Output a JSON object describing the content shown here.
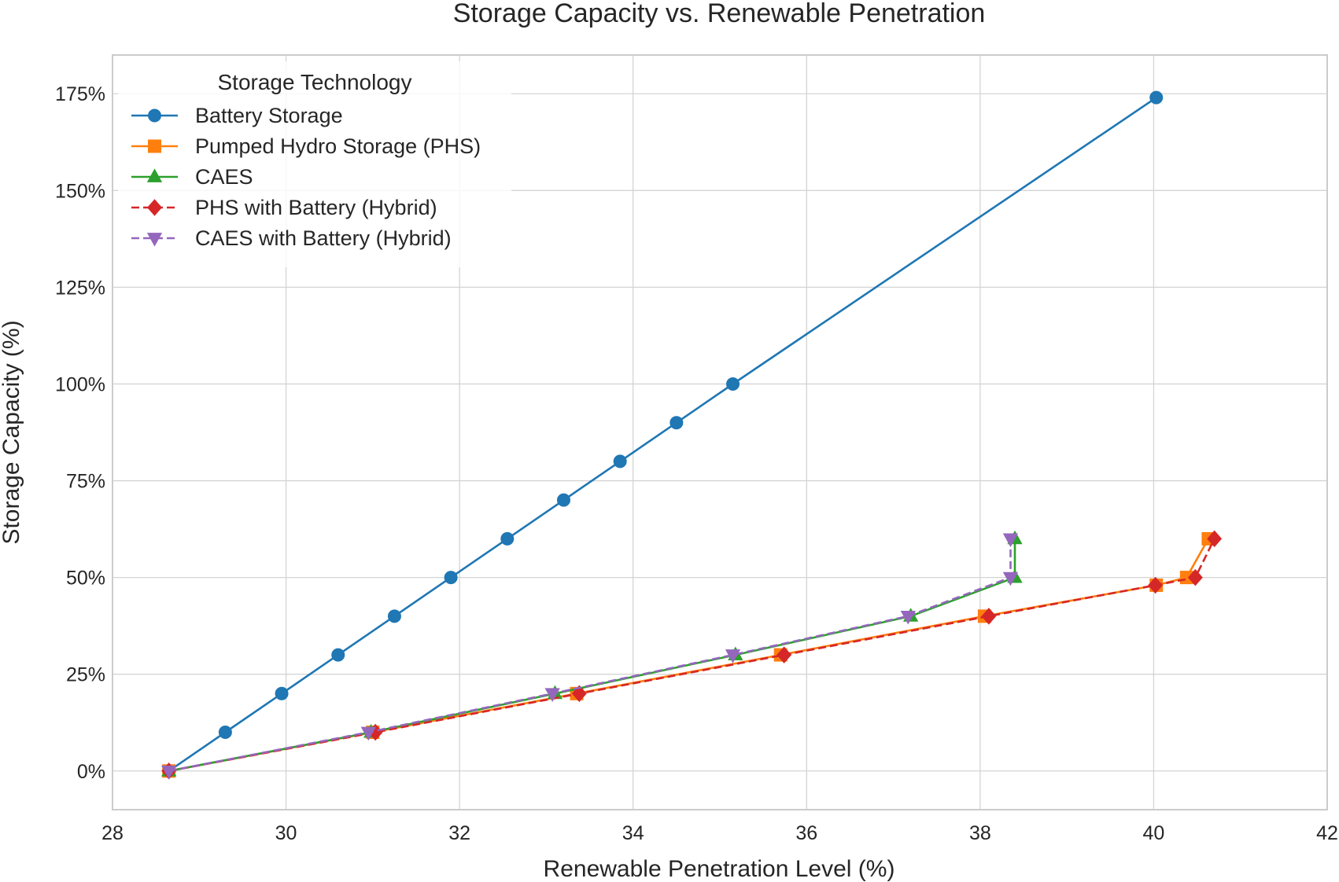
{
  "chart_data": {
    "type": "line",
    "title": "Storage Capacity vs. Renewable Penetration",
    "xlabel": "Renewable Penetration Level (%)",
    "ylabel": "Storage Capacity (%)",
    "xlim": [
      28,
      42
    ],
    "ylim": [
      -10,
      185
    ],
    "xticks": [
      28,
      30,
      32,
      34,
      36,
      38,
      40,
      42
    ],
    "yticks": [
      0,
      25,
      50,
      75,
      100,
      125,
      150,
      175
    ],
    "ytick_suffix": "%",
    "grid": true,
    "legend": {
      "title": "Storage Technology",
      "position": "top-left"
    },
    "series": [
      {
        "name": "Battery Storage",
        "color": "#1f77b4",
        "marker": "circle",
        "linestyle": "solid",
        "x": [
          28.65,
          29.3,
          29.95,
          30.6,
          31.25,
          31.9,
          32.55,
          33.2,
          33.85,
          34.5,
          35.15,
          40.03
        ],
        "y": [
          0,
          10,
          20,
          30,
          40,
          50,
          60,
          70,
          80,
          90,
          100,
          174
        ]
      },
      {
        "name": "Pumped Hydro Storage (PHS)",
        "color": "#ff7f0e",
        "marker": "square",
        "linestyle": "solid",
        "x": [
          28.65,
          31.0,
          33.35,
          35.7,
          38.05,
          40.03,
          40.38,
          40.63
        ],
        "y": [
          0,
          10,
          20,
          30,
          40,
          48,
          50,
          60
        ]
      },
      {
        "name": "CAES",
        "color": "#2ca02c",
        "marker": "triangle-up",
        "linestyle": "solid",
        "x": [
          28.65,
          30.98,
          33.1,
          35.18,
          37.2,
          38.4,
          38.4
        ],
        "y": [
          0,
          10,
          20,
          30,
          40,
          50,
          60
        ]
      },
      {
        "name": "PHS with Battery (Hybrid)",
        "color": "#d62728",
        "marker": "diamond",
        "linestyle": "dashed",
        "x": [
          28.65,
          31.03,
          33.38,
          35.74,
          38.1,
          40.02,
          40.48,
          40.7
        ],
        "y": [
          0,
          10,
          20,
          30,
          40,
          48,
          50,
          60
        ]
      },
      {
        "name": "CAES with Battery (Hybrid)",
        "color": "#9467bd",
        "marker": "triangle-down",
        "linestyle": "dashed",
        "x": [
          28.65,
          30.95,
          33.07,
          35.15,
          37.17,
          38.35,
          38.35
        ],
        "y": [
          0,
          10,
          20,
          30,
          40,
          50,
          60
        ]
      }
    ]
  }
}
